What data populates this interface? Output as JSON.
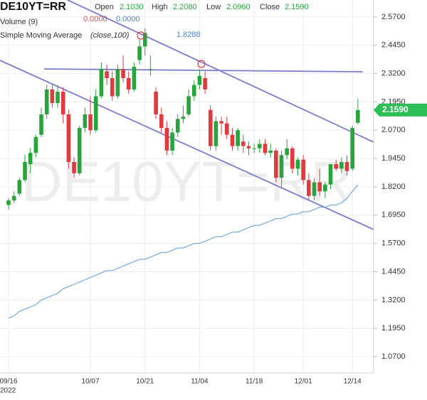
{
  "chart_data": {
    "type": "candlestick",
    "title": "DE10YT=RR",
    "watermark": "DE10YT=RR",
    "year_label": "2022",
    "ohlc_legend": {
      "labels": [
        "Open",
        "High",
        "Low",
        "Close"
      ],
      "values": [
        2.103,
        2.208,
        2.096,
        2.159
      ],
      "value_labels": [
        "2.1030",
        "2.2080",
        "2.0960",
        "2.1590"
      ],
      "colors": [
        "#27a53c",
        "#27a53c",
        "#27a53c",
        "#27a53c"
      ]
    },
    "volume_legend": {
      "label": "Volume (9)",
      "values": [
        0,
        0
      ],
      "value_labels": [
        "0.0000",
        "0.0000"
      ],
      "colors": [
        "#d9534f",
        "#4a86c8"
      ]
    },
    "categories": [
      "09/16",
      null,
      null,
      null,
      null,
      null,
      null,
      null,
      null,
      null,
      null,
      null,
      null,
      null,
      null,
      "10/07",
      null,
      null,
      null,
      null,
      null,
      null,
      null,
      null,
      null,
      "10/21",
      null,
      null,
      null,
      null,
      null,
      null,
      null,
      null,
      null,
      "11/04",
      null,
      null,
      null,
      null,
      null,
      null,
      null,
      null,
      null,
      "11/18",
      null,
      null,
      null,
      null,
      null,
      null,
      null,
      null,
      "12/01",
      null,
      null,
      null,
      null,
      null,
      null,
      null,
      null,
      "12/14",
      null
    ],
    "open": [
      1.74,
      1.76,
      1.79,
      1.85,
      1.92,
      1.97,
      2.05,
      2.14,
      2.25,
      2.19,
      2.24,
      2.14,
      1.93,
      1.88,
      2.08,
      2.14,
      2.07,
      2.22,
      2.33,
      2.3,
      2.22,
      2.34,
      2.3,
      2.25,
      2.38,
      2.44,
      2.34,
      2.24,
      2.14,
      2.08,
      1.98,
      2.06,
      2.12,
      2.14,
      2.22,
      2.27,
      2.3,
      2.16,
      2.0,
      2.11,
      2.1,
      2.05,
      2.0,
      2.02,
      2.0,
      1.99,
      1.99,
      2.01,
      1.97,
      1.98,
      1.86,
      1.96,
      1.99,
      1.9,
      1.94,
      1.85,
      1.78,
      1.84,
      1.8,
      1.83,
      1.92,
      1.9,
      1.93,
      1.9,
      2.103
    ],
    "high": [
      1.77,
      1.8,
      1.86,
      1.96,
      1.99,
      2.05,
      2.17,
      2.27,
      2.27,
      2.27,
      2.26,
      2.16,
      1.95,
      2.09,
      2.17,
      2.22,
      2.25,
      2.37,
      2.36,
      2.33,
      2.36,
      2.4,
      2.33,
      2.37,
      2.47,
      2.52,
      2.4,
      2.26,
      2.17,
      2.11,
      2.08,
      2.14,
      2.18,
      2.25,
      2.29,
      2.34,
      2.33,
      2.18,
      2.13,
      2.13,
      2.13,
      2.08,
      2.08,
      2.05,
      2.02,
      2.01,
      2.03,
      2.03,
      2.01,
      1.99,
      1.98,
      2.03,
      2.0,
      1.95,
      1.96,
      1.88,
      1.86,
      1.9,
      1.84,
      1.92,
      1.94,
      1.95,
      1.96,
      2.09,
      2.208
    ],
    "low": [
      1.72,
      1.75,
      1.78,
      1.84,
      1.88,
      1.95,
      2.04,
      2.12,
      2.17,
      2.17,
      2.1,
      1.9,
      1.86,
      1.87,
      2.06,
      2.05,
      2.06,
      2.21,
      2.27,
      2.2,
      2.21,
      2.28,
      2.23,
      2.24,
      2.36,
      2.4,
      2.31,
      2.12,
      2.06,
      1.96,
      1.96,
      2.04,
      2.1,
      2.13,
      2.2,
      2.25,
      2.23,
      1.98,
      1.98,
      2.05,
      2.03,
      1.98,
      1.98,
      1.97,
      1.96,
      1.97,
      1.97,
      1.96,
      1.95,
      1.84,
      1.82,
      1.94,
      1.88,
      1.87,
      1.83,
      1.76,
      1.76,
      1.78,
      1.77,
      1.81,
      1.89,
      1.88,
      1.87,
      1.89,
      2.096
    ],
    "close": [
      1.76,
      1.78,
      1.85,
      1.93,
      1.97,
      2.04,
      2.14,
      2.25,
      2.19,
      2.24,
      2.14,
      1.93,
      1.88,
      2.08,
      2.14,
      2.07,
      2.22,
      2.34,
      2.3,
      2.22,
      2.34,
      2.3,
      2.25,
      2.35,
      2.44,
      2.5,
      2.34,
      2.14,
      2.08,
      1.98,
      2.06,
      2.12,
      2.13,
      2.22,
      2.27,
      2.31,
      2.25,
      2.0,
      2.11,
      2.1,
      2.05,
      2.0,
      2.07,
      2.0,
      1.99,
      1.99,
      2.01,
      1.97,
      1.98,
      1.86,
      1.96,
      1.99,
      1.9,
      1.94,
      1.85,
      1.78,
      1.84,
      1.8,
      1.83,
      1.92,
      1.9,
      1.93,
      1.89,
      2.08,
      2.159
    ],
    "up_color": "#27a53c",
    "down_color": "#e0393e",
    "sma": {
      "name": "Simple Moving Average",
      "params": "(close,100)",
      "color": "#5b9bd5",
      "value_label": "1.8288",
      "values": [
        1.24,
        1.25,
        1.27,
        1.28,
        1.29,
        1.3,
        1.32,
        1.33,
        1.34,
        1.35,
        1.37,
        1.38,
        1.39,
        1.4,
        1.41,
        1.42,
        1.43,
        1.44,
        1.45,
        1.45,
        1.46,
        1.47,
        1.48,
        1.49,
        1.5,
        1.5,
        1.51,
        1.52,
        1.53,
        1.53,
        1.54,
        1.55,
        1.55,
        1.56,
        1.57,
        1.57,
        1.58,
        1.59,
        1.6,
        1.6,
        1.61,
        1.62,
        1.62,
        1.63,
        1.64,
        1.65,
        1.65,
        1.66,
        1.67,
        1.68,
        1.68,
        1.69,
        1.7,
        1.7,
        1.71,
        1.71,
        1.72,
        1.73,
        1.73,
        1.74,
        1.74,
        1.75,
        1.77,
        1.8,
        1.8288
      ]
    },
    "last_price": {
      "value": 2.159,
      "label": "2.1590",
      "color": "#2dbf55"
    },
    "ylim": [
      0.998,
      2.645
    ],
    "yticks": [
      {
        "value": 2.57,
        "label": "2.5700"
      },
      {
        "value": 2.445,
        "label": "2.4450"
      },
      {
        "value": 2.32,
        "label": "2.3200"
      },
      {
        "value": 2.195,
        "label": "2.1950"
      },
      {
        "value": 2.07,
        "label": "2.0700"
      },
      {
        "value": 1.945,
        "label": "1.9450"
      },
      {
        "value": 1.82,
        "label": "1.8200"
      },
      {
        "value": 1.695,
        "label": "1.6950"
      },
      {
        "value": 1.57,
        "label": "1.5700"
      },
      {
        "value": 1.445,
        "label": "1.4450"
      },
      {
        "value": 1.32,
        "label": "1.3200"
      },
      {
        "value": 1.195,
        "label": "1.1950"
      },
      {
        "value": 1.07,
        "label": "1.0700"
      }
    ],
    "grid": true
  }
}
